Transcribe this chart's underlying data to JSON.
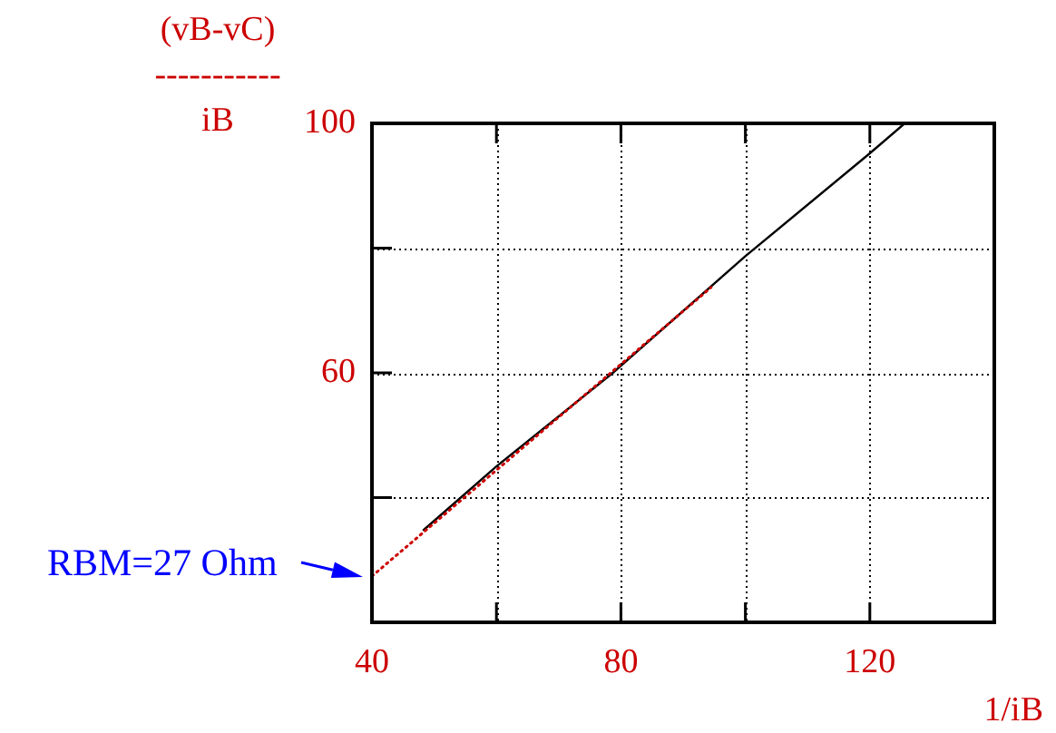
{
  "chart_data": {
    "type": "line",
    "xlabel": "1/iB",
    "ylabel": "(vB-vC)\n-----------\niB",
    "annotations": [
      {
        "text": "RBM=27 Ohm",
        "x": 40,
        "y": 27.4
      }
    ],
    "xlim": [
      40,
      140
    ],
    "ylim": [
      20,
      100
    ],
    "xticks": [
      40,
      {
        "value": 60,
        "label": null
      },
      80,
      {
        "value": 100,
        "label": null
      },
      120
    ],
    "yticks": [
      {
        "value": 40,
        "label": null
      },
      60,
      {
        "value": 80,
        "label": null
      },
      100
    ],
    "grid": true,
    "legend": false,
    "marker": "none",
    "series": [
      {
        "color": "#000000",
        "line_style": "solid",
        "x": [
          48.3,
          60,
          78.7,
          100,
          120,
          125.6
        ],
        "values": [
          34.8,
          45,
          60,
          78.7,
          95.2,
          100
        ]
      },
      {
        "color": "#cc0000",
        "line_style": "dotted",
        "x": [
          40,
          94.5
        ],
        "values": [
          27.4,
          73.7
        ]
      }
    ]
  }
}
